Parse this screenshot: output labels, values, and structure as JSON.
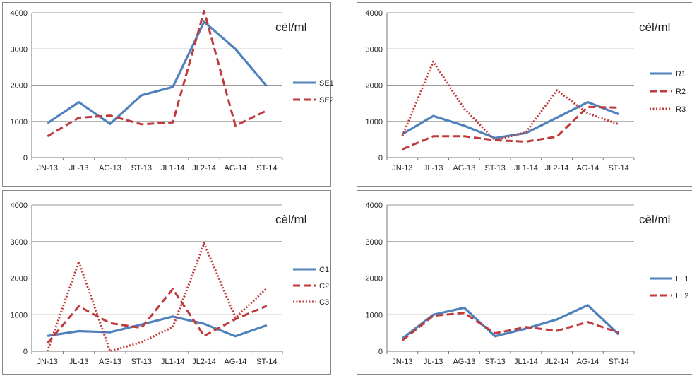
{
  "chart_data": [
    {
      "type": "line",
      "unit_label": "cèl/ml",
      "categories": [
        "JN-13",
        "JL-13",
        "AG-13",
        "ST-13",
        "JL1-14",
        "JL2-14",
        "AG-14",
        "ST-14"
      ],
      "ylim": [
        0,
        4000
      ],
      "yticks": [
        0,
        1000,
        2000,
        3000,
        4000
      ],
      "grid": true,
      "legend": "right",
      "series": [
        {
          "name": "SE1",
          "style": "solid",
          "color": "#4f81bd",
          "values": [
            950,
            1530,
            930,
            1720,
            1950,
            3750,
            3000,
            1970
          ]
        },
        {
          "name": "SE2",
          "style": "dashed",
          "color": "#c0393b",
          "values": [
            590,
            1100,
            1160,
            920,
            970,
            4050,
            880,
            1300
          ]
        }
      ]
    },
    {
      "type": "line",
      "unit_label": "cèl/ml",
      "categories": [
        "JN-13",
        "JL-13",
        "AG-13",
        "ST-13",
        "JL1-14",
        "JL2-14",
        "AG-14",
        "ST-14"
      ],
      "ylim": [
        0,
        4000
      ],
      "yticks": [
        0,
        1000,
        2000,
        3000,
        4000
      ],
      "grid": true,
      "legend": "right",
      "series": [
        {
          "name": "R1",
          "style": "solid",
          "color": "#4f81bd",
          "values": [
            650,
            1150,
            880,
            540,
            680,
            1100,
            1530,
            1200
          ]
        },
        {
          "name": "R2",
          "style": "dashed",
          "color": "#c0393b",
          "values": [
            230,
            590,
            590,
            480,
            440,
            580,
            1400,
            1380
          ]
        },
        {
          "name": "R3",
          "style": "dotted",
          "color": "#c0393b",
          "values": [
            600,
            2650,
            1350,
            480,
            700,
            1860,
            1220,
            920
          ]
        }
      ]
    },
    {
      "type": "line",
      "unit_label": "cèl/ml",
      "categories": [
        "JN-13",
        "JL-13",
        "AG-13",
        "ST-13",
        "JL1-14",
        "JL2-14",
        "AG-14",
        "ST-14"
      ],
      "ylim": [
        0,
        4000
      ],
      "yticks": [
        0,
        1000,
        2000,
        3000,
        4000
      ],
      "grid": true,
      "legend": "right",
      "series": [
        {
          "name": "C1",
          "style": "solid",
          "color": "#4f81bd",
          "values": [
            420,
            550,
            520,
            730,
            950,
            750,
            410,
            710
          ]
        },
        {
          "name": "C2",
          "style": "dashed",
          "color": "#c0393b",
          "values": [
            220,
            1230,
            770,
            640,
            1700,
            420,
            880,
            1240
          ]
        },
        {
          "name": "C3",
          "style": "dotted",
          "color": "#c0393b",
          "values": [
            0,
            2450,
            0,
            250,
            660,
            2950,
            920,
            1720
          ]
        }
      ]
    },
    {
      "type": "line",
      "unit_label": "cèl/ml",
      "categories": [
        "JN-13",
        "JL-13",
        "AG-13",
        "ST-13",
        "JL1-14",
        "JL2-14",
        "AG-14",
        "ST-14"
      ],
      "ylim": [
        0,
        4000
      ],
      "yticks": [
        0,
        1000,
        2000,
        3000,
        4000
      ],
      "grid": true,
      "legend": "right",
      "series": [
        {
          "name": "LL1",
          "style": "solid",
          "color": "#4f81bd",
          "values": [
            350,
            1000,
            1190,
            410,
            620,
            870,
            1260,
            460
          ]
        },
        {
          "name": "LL2",
          "style": "dashed",
          "color": "#c0393b",
          "values": [
            300,
            970,
            1050,
            490,
            660,
            560,
            800,
            510
          ]
        }
      ]
    }
  ]
}
